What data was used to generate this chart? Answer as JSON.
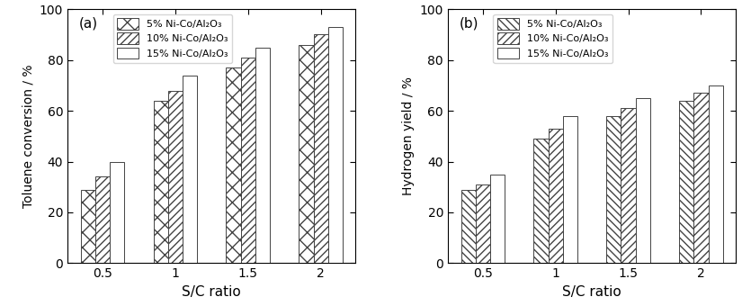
{
  "sc_ratios": [
    0.5,
    1.0,
    1.5,
    2.0
  ],
  "sc_labels": [
    "0.5",
    "1",
    "1.5",
    "2"
  ],
  "toluene_conversion": {
    "5pct": [
      29,
      64,
      77,
      86
    ],
    "10pct": [
      34,
      68,
      81,
      90
    ],
    "15pct": [
      40,
      74,
      85,
      93
    ]
  },
  "hydrogen_yield": {
    "5pct": [
      29,
      49,
      58,
      64
    ],
    "10pct": [
      31,
      53,
      61,
      67
    ],
    "15pct": [
      35,
      58,
      65,
      70
    ]
  },
  "xlabel": "S/C ratio",
  "ylabel_a": "Toluene conversion / %",
  "ylabel_b": "Hydrogen yield / %",
  "label_a": "(a)",
  "label_b": "(b)",
  "legend_labels": [
    "5% Ni-Co/Al₂O₃",
    "10% Ni-Co/Al₂O₃",
    "15% Ni-Co/Al₂O₃"
  ],
  "ylim": [
    0,
    100
  ],
  "yticks": [
    0,
    20,
    40,
    60,
    80,
    100
  ],
  "bar_width": 0.2,
  "edge_color": "#444444",
  "hatch_a": [
    "xx",
    "////",
    "##"
  ],
  "hatch_b": [
    "\\\\\\\\",
    "////",
    "##"
  ]
}
